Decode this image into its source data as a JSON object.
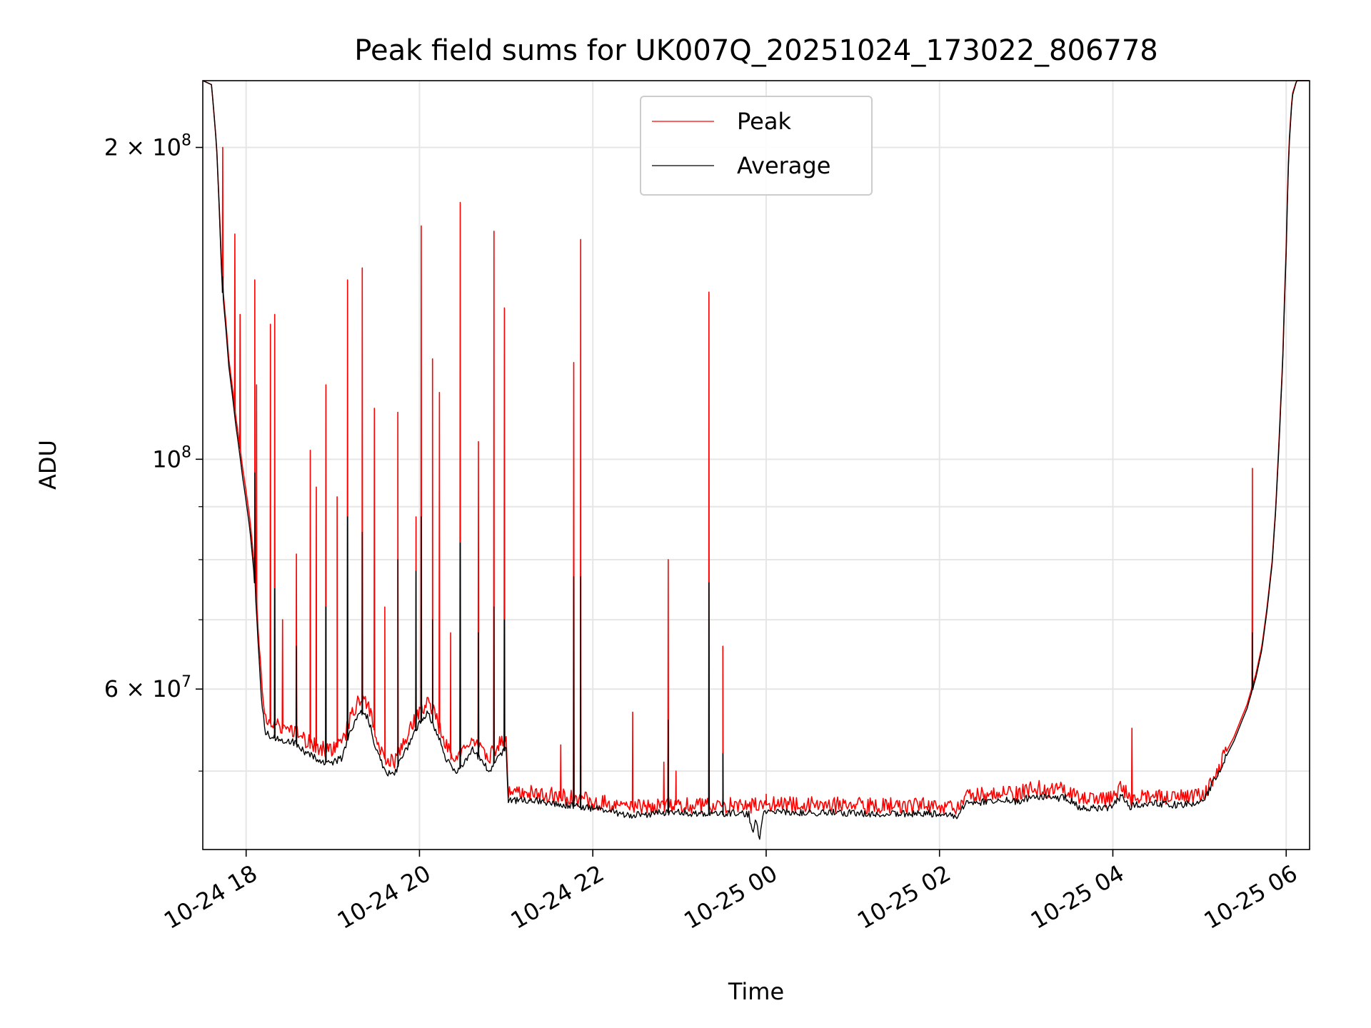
{
  "chart_data": {
    "type": "line",
    "title": "Peak field sums for UK007Q_20251024_173022_806778",
    "xlabel": "Time",
    "ylabel": "ADU",
    "yscale": "log",
    "xlim": [
      17.5,
      30.27
    ],
    "ylim": [
      42000000,
      232000000
    ],
    "grid": true,
    "legend_position": "top-center",
    "x_ticks": [
      {
        "value": 18,
        "label": "10-24 18"
      },
      {
        "value": 20,
        "label": "10-24 20"
      },
      {
        "value": 22,
        "label": "10-24 22"
      },
      {
        "value": 24,
        "label": "10-25 00"
      },
      {
        "value": 26,
        "label": "10-25 02"
      },
      {
        "value": 28,
        "label": "10-25 04"
      },
      {
        "value": 30,
        "label": "10-25 06"
      }
    ],
    "y_ticks": [
      {
        "value": 60000000,
        "base": "6 × 10",
        "exp": "7"
      },
      {
        "value": 100000000,
        "base": "10",
        "exp": "8"
      },
      {
        "value": 200000000,
        "base": "2 × 10",
        "exp": "8"
      }
    ],
    "y_minor_ticks": [
      50000000,
      70000000,
      80000000,
      90000000
    ],
    "x_unit_note": "hours since 2025-10-24 00:00",
    "series": [
      {
        "name": "Peak",
        "color": "#ff0000",
        "baseline": [
          [
            17.5,
            232000000
          ],
          [
            17.6,
            230000000
          ],
          [
            17.66,
            200000000
          ],
          [
            17.72,
            150000000
          ],
          [
            17.8,
            125000000
          ],
          [
            17.88,
            110000000
          ],
          [
            17.96,
            98000000
          ],
          [
            18.04,
            88000000
          ],
          [
            18.1,
            78000000
          ],
          [
            18.14,
            68000000
          ],
          [
            18.18,
            60000000
          ],
          [
            18.22,
            56000000
          ],
          [
            18.3,
            55500000
          ],
          [
            18.4,
            55000000
          ],
          [
            18.5,
            55000000
          ],
          [
            18.6,
            54500000
          ],
          [
            18.7,
            53500000
          ],
          [
            18.8,
            53000000
          ],
          [
            18.9,
            52500000
          ],
          [
            19.0,
            52500000
          ],
          [
            19.1,
            53000000
          ],
          [
            19.2,
            56000000
          ],
          [
            19.3,
            58500000
          ],
          [
            19.4,
            58000000
          ],
          [
            19.5,
            54000000
          ],
          [
            19.6,
            51500000
          ],
          [
            19.7,
            51000000
          ],
          [
            19.8,
            53000000
          ],
          [
            19.9,
            55000000
          ],
          [
            20.0,
            57000000
          ],
          [
            20.1,
            58500000
          ],
          [
            20.2,
            56000000
          ],
          [
            20.3,
            53000000
          ],
          [
            20.4,
            51500000
          ],
          [
            20.5,
            52000000
          ],
          [
            20.6,
            54000000
          ],
          [
            20.7,
            53000000
          ],
          [
            20.8,
            51500000
          ],
          [
            20.9,
            53000000
          ],
          [
            21.0,
            54000000
          ],
          [
            21.02,
            48000000
          ],
          [
            21.05,
            47500000
          ],
          [
            21.3,
            47600000
          ],
          [
            21.6,
            47300000
          ],
          [
            21.8,
            47000000
          ],
          [
            22.0,
            46800000
          ],
          [
            22.2,
            46500000
          ],
          [
            22.4,
            46200000
          ],
          [
            22.6,
            46100000
          ],
          [
            22.8,
            46400000
          ],
          [
            23.0,
            46400000
          ],
          [
            23.2,
            46300000
          ],
          [
            23.4,
            46300000
          ],
          [
            23.6,
            46400000
          ],
          [
            23.8,
            46300000
          ],
          [
            24.0,
            46400000
          ],
          [
            24.4,
            46400000
          ],
          [
            24.8,
            46400000
          ],
          [
            25.2,
            46300000
          ],
          [
            25.6,
            46300000
          ],
          [
            26.0,
            46300000
          ],
          [
            26.2,
            46000000
          ],
          [
            26.3,
            47400000
          ],
          [
            26.5,
            47500000
          ],
          [
            26.7,
            47800000
          ],
          [
            26.9,
            47500000
          ],
          [
            27.1,
            48200000
          ],
          [
            27.3,
            47800000
          ],
          [
            27.45,
            48000000
          ],
          [
            27.6,
            47000000
          ],
          [
            27.8,
            46800000
          ],
          [
            28.0,
            47000000
          ],
          [
            28.1,
            48200000
          ],
          [
            28.2,
            47000000
          ],
          [
            28.3,
            47200000
          ],
          [
            28.5,
            47300000
          ],
          [
            28.7,
            47200000
          ],
          [
            28.9,
            47300000
          ],
          [
            29.05,
            47600000
          ],
          [
            29.2,
            50000000
          ],
          [
            29.4,
            54000000
          ],
          [
            29.55,
            58000000
          ],
          [
            29.65,
            62000000
          ],
          [
            29.72,
            66000000
          ],
          [
            29.78,
            72000000
          ],
          [
            29.84,
            80000000
          ],
          [
            29.88,
            90000000
          ],
          [
            29.92,
            105000000
          ],
          [
            29.96,
            125000000
          ],
          [
            30.0,
            160000000
          ],
          [
            30.03,
            200000000
          ],
          [
            30.07,
            225000000
          ],
          [
            30.12,
            232000000
          ],
          [
            30.27,
            232000000
          ]
        ],
        "spikes": [
          [
            17.73,
            200000000
          ],
          [
            17.87,
            165000000
          ],
          [
            17.93,
            138000000
          ],
          [
            18.1,
            149000000
          ],
          [
            18.12,
            118000000
          ],
          [
            18.28,
            135000000
          ],
          [
            18.33,
            138000000
          ],
          [
            18.42,
            70000000
          ],
          [
            18.58,
            81000000
          ],
          [
            18.74,
            102000000
          ],
          [
            18.81,
            94000000
          ],
          [
            18.92,
            118000000
          ],
          [
            19.05,
            92000000
          ],
          [
            19.17,
            149000000
          ],
          [
            19.34,
            153000000
          ],
          [
            19.48,
            112000000
          ],
          [
            19.6,
            72000000
          ],
          [
            19.75,
            111000000
          ],
          [
            19.96,
            88000000
          ],
          [
            20.02,
            168000000
          ],
          [
            20.15,
            125000000
          ],
          [
            20.23,
            116000000
          ],
          [
            20.36,
            68000000
          ],
          [
            20.47,
            177000000
          ],
          [
            20.68,
            104000000
          ],
          [
            20.86,
            166000000
          ],
          [
            20.98,
            140000000
          ],
          [
            21.63,
            53000000
          ],
          [
            21.78,
            124000000
          ],
          [
            21.86,
            163000000
          ],
          [
            22.46,
            57000000
          ],
          [
            22.82,
            51000000
          ],
          [
            22.87,
            80000000
          ],
          [
            22.96,
            50000000
          ],
          [
            23.34,
            145000000
          ],
          [
            23.5,
            66000000
          ],
          [
            24.0,
            47500000
          ],
          [
            28.22,
            55000000
          ],
          [
            29.61,
            98000000
          ]
        ]
      },
      {
        "name": "Average",
        "color": "#000000",
        "baseline": [
          [
            17.5,
            232000000
          ],
          [
            17.6,
            230000000
          ],
          [
            17.66,
            200000000
          ],
          [
            17.72,
            148000000
          ],
          [
            17.8,
            123000000
          ],
          [
            17.88,
            108000000
          ],
          [
            17.96,
            96000000
          ],
          [
            18.04,
            86000000
          ],
          [
            18.1,
            76000000
          ],
          [
            18.14,
            66000000
          ],
          [
            18.18,
            58500000
          ],
          [
            18.22,
            54500000
          ],
          [
            18.3,
            54000000
          ],
          [
            18.4,
            53500000
          ],
          [
            18.5,
            53500000
          ],
          [
            18.6,
            53000000
          ],
          [
            18.7,
            52000000
          ],
          [
            18.8,
            51500000
          ],
          [
            18.9,
            51000000
          ],
          [
            19.0,
            51000000
          ],
          [
            19.1,
            51500000
          ],
          [
            19.2,
            54500000
          ],
          [
            19.3,
            57000000
          ],
          [
            19.4,
            56500000
          ],
          [
            19.5,
            52500000
          ],
          [
            19.6,
            50000000
          ],
          [
            19.7,
            49500000
          ],
          [
            19.8,
            51500000
          ],
          [
            19.9,
            53500000
          ],
          [
            20.0,
            55500000
          ],
          [
            20.1,
            57000000
          ],
          [
            20.2,
            54500000
          ],
          [
            20.3,
            51500000
          ],
          [
            20.4,
            50000000
          ],
          [
            20.5,
            50500000
          ],
          [
            20.6,
            52500000
          ],
          [
            20.7,
            51500000
          ],
          [
            20.8,
            50000000
          ],
          [
            20.9,
            51500000
          ],
          [
            21.0,
            52500000
          ],
          [
            21.02,
            47000000
          ],
          [
            21.05,
            46800000
          ],
          [
            21.3,
            46900000
          ],
          [
            21.6,
            46500000
          ],
          [
            21.8,
            46200000
          ],
          [
            22.0,
            46000000
          ],
          [
            22.2,
            45700000
          ],
          [
            22.4,
            45400000
          ],
          [
            22.6,
            45300000
          ],
          [
            22.8,
            45600000
          ],
          [
            23.0,
            45600000
          ],
          [
            23.2,
            45500000
          ],
          [
            23.4,
            45500000
          ],
          [
            23.6,
            45600000
          ],
          [
            23.8,
            45400000
          ],
          [
            23.85,
            43500000
          ],
          [
            23.88,
            45300000
          ],
          [
            23.92,
            43000000
          ],
          [
            23.96,
            45400000
          ],
          [
            24.0,
            45600000
          ],
          [
            24.4,
            45600000
          ],
          [
            24.8,
            45600000
          ],
          [
            25.2,
            45500000
          ],
          [
            25.6,
            45500000
          ],
          [
            26.0,
            45500000
          ],
          [
            26.2,
            45200000
          ],
          [
            26.3,
            46600000
          ],
          [
            26.5,
            46700000
          ],
          [
            26.7,
            47000000
          ],
          [
            26.9,
            46700000
          ],
          [
            27.1,
            47400000
          ],
          [
            27.3,
            47000000
          ],
          [
            27.45,
            47200000
          ],
          [
            27.6,
            46200000
          ],
          [
            27.8,
            46000000
          ],
          [
            28.0,
            46200000
          ],
          [
            28.1,
            47400000
          ],
          [
            28.2,
            46200000
          ],
          [
            28.3,
            46400000
          ],
          [
            28.5,
            46500000
          ],
          [
            28.7,
            46400000
          ],
          [
            28.9,
            46500000
          ],
          [
            29.05,
            46800000
          ],
          [
            29.2,
            49500000
          ],
          [
            29.4,
            53500000
          ],
          [
            29.55,
            57500000
          ],
          [
            29.65,
            61500000
          ],
          [
            29.72,
            65500000
          ],
          [
            29.78,
            71500000
          ],
          [
            29.84,
            79500000
          ],
          [
            29.88,
            89500000
          ],
          [
            29.92,
            104000000
          ],
          [
            29.96,
            124000000
          ],
          [
            30.0,
            158000000
          ],
          [
            30.03,
            198000000
          ],
          [
            30.07,
            224000000
          ],
          [
            30.12,
            232000000
          ],
          [
            30.27,
            232000000
          ]
        ],
        "spikes": [
          [
            17.73,
            150000000
          ],
          [
            18.1,
            97000000
          ],
          [
            18.33,
            75000000
          ],
          [
            18.58,
            66000000
          ],
          [
            18.92,
            72000000
          ],
          [
            19.17,
            88000000
          ],
          [
            19.34,
            85000000
          ],
          [
            19.75,
            80000000
          ],
          [
            19.96,
            78000000
          ],
          [
            20.02,
            88000000
          ],
          [
            20.15,
            70000000
          ],
          [
            20.47,
            83000000
          ],
          [
            20.68,
            68000000
          ],
          [
            20.86,
            72000000
          ],
          [
            20.98,
            70000000
          ],
          [
            21.78,
            77000000
          ],
          [
            21.86,
            77000000
          ],
          [
            22.87,
            56000000
          ],
          [
            23.34,
            76000000
          ],
          [
            23.5,
            52000000
          ],
          [
            29.61,
            68000000
          ]
        ]
      }
    ]
  }
}
